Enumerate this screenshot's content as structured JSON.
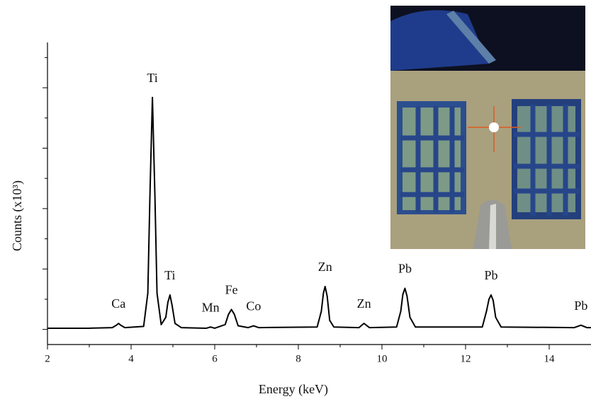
{
  "chart_data": {
    "type": "line",
    "xlabel": "Energy (keV)",
    "ylabel": "Counts (x10³)",
    "xlim": [
      2,
      15
    ],
    "xticks": [
      2,
      4,
      6,
      8,
      10,
      12,
      14
    ],
    "xminorticks": [
      3,
      5,
      7,
      9,
      11,
      13
    ],
    "ylim": [
      -0.25,
      4.75
    ],
    "yticks": [
      0,
      1,
      2,
      3,
      4
    ],
    "yminorticks": [
      0.5,
      1.5,
      2.5,
      3.5,
      4.5
    ],
    "color": "#000000",
    "x": [
      2,
      3,
      3.55,
      3.65,
      3.7,
      3.75,
      3.85,
      4.3,
      4.4,
      4.45,
      4.51,
      4.57,
      4.62,
      4.72,
      4.83,
      4.88,
      4.93,
      4.98,
      5.05,
      5.2,
      5.8,
      5.9,
      6.0,
      6.25,
      6.33,
      6.4,
      6.47,
      6.56,
      6.8,
      6.93,
      7.05,
      8.45,
      8.55,
      8.6,
      8.64,
      8.69,
      8.75,
      8.85,
      9.45,
      9.57,
      9.7,
      10.35,
      10.45,
      10.5,
      10.55,
      10.6,
      10.67,
      10.8,
      12.4,
      12.5,
      12.56,
      12.61,
      12.66,
      12.72,
      12.85,
      14.6,
      14.76,
      14.9,
      15
    ],
    "values": [
      0.02,
      0.02,
      0.03,
      0.07,
      0.1,
      0.07,
      0.03,
      0.05,
      0.6,
      2.2,
      3.84,
      2.2,
      0.6,
      0.08,
      0.2,
      0.45,
      0.57,
      0.4,
      0.1,
      0.03,
      0.02,
      0.04,
      0.02,
      0.08,
      0.25,
      0.33,
      0.25,
      0.06,
      0.03,
      0.06,
      0.03,
      0.04,
      0.3,
      0.6,
      0.71,
      0.55,
      0.15,
      0.04,
      0.03,
      0.1,
      0.03,
      0.04,
      0.3,
      0.58,
      0.68,
      0.55,
      0.2,
      0.04,
      0.04,
      0.3,
      0.5,
      0.57,
      0.48,
      0.2,
      0.04,
      0.03,
      0.07,
      0.03,
      0.03
    ],
    "annotations": [
      {
        "text": "Ca",
        "x": 3.7
      },
      {
        "text": "Ti",
        "x": 4.51
      },
      {
        "text": "Ti",
        "x": 4.93
      },
      {
        "text": "Mn",
        "x": 5.9
      },
      {
        "text": "Fe",
        "x": 6.4
      },
      {
        "text": "Co",
        "x": 6.93
      },
      {
        "text": "Zn",
        "x": 8.64
      },
      {
        "text": "Zn",
        "x": 9.57
      },
      {
        "text": "Pb",
        "x": 10.55
      },
      {
        "text": "Pb",
        "x": 12.61
      },
      {
        "text": "Pb",
        "x": 14.76
      }
    ]
  }
}
